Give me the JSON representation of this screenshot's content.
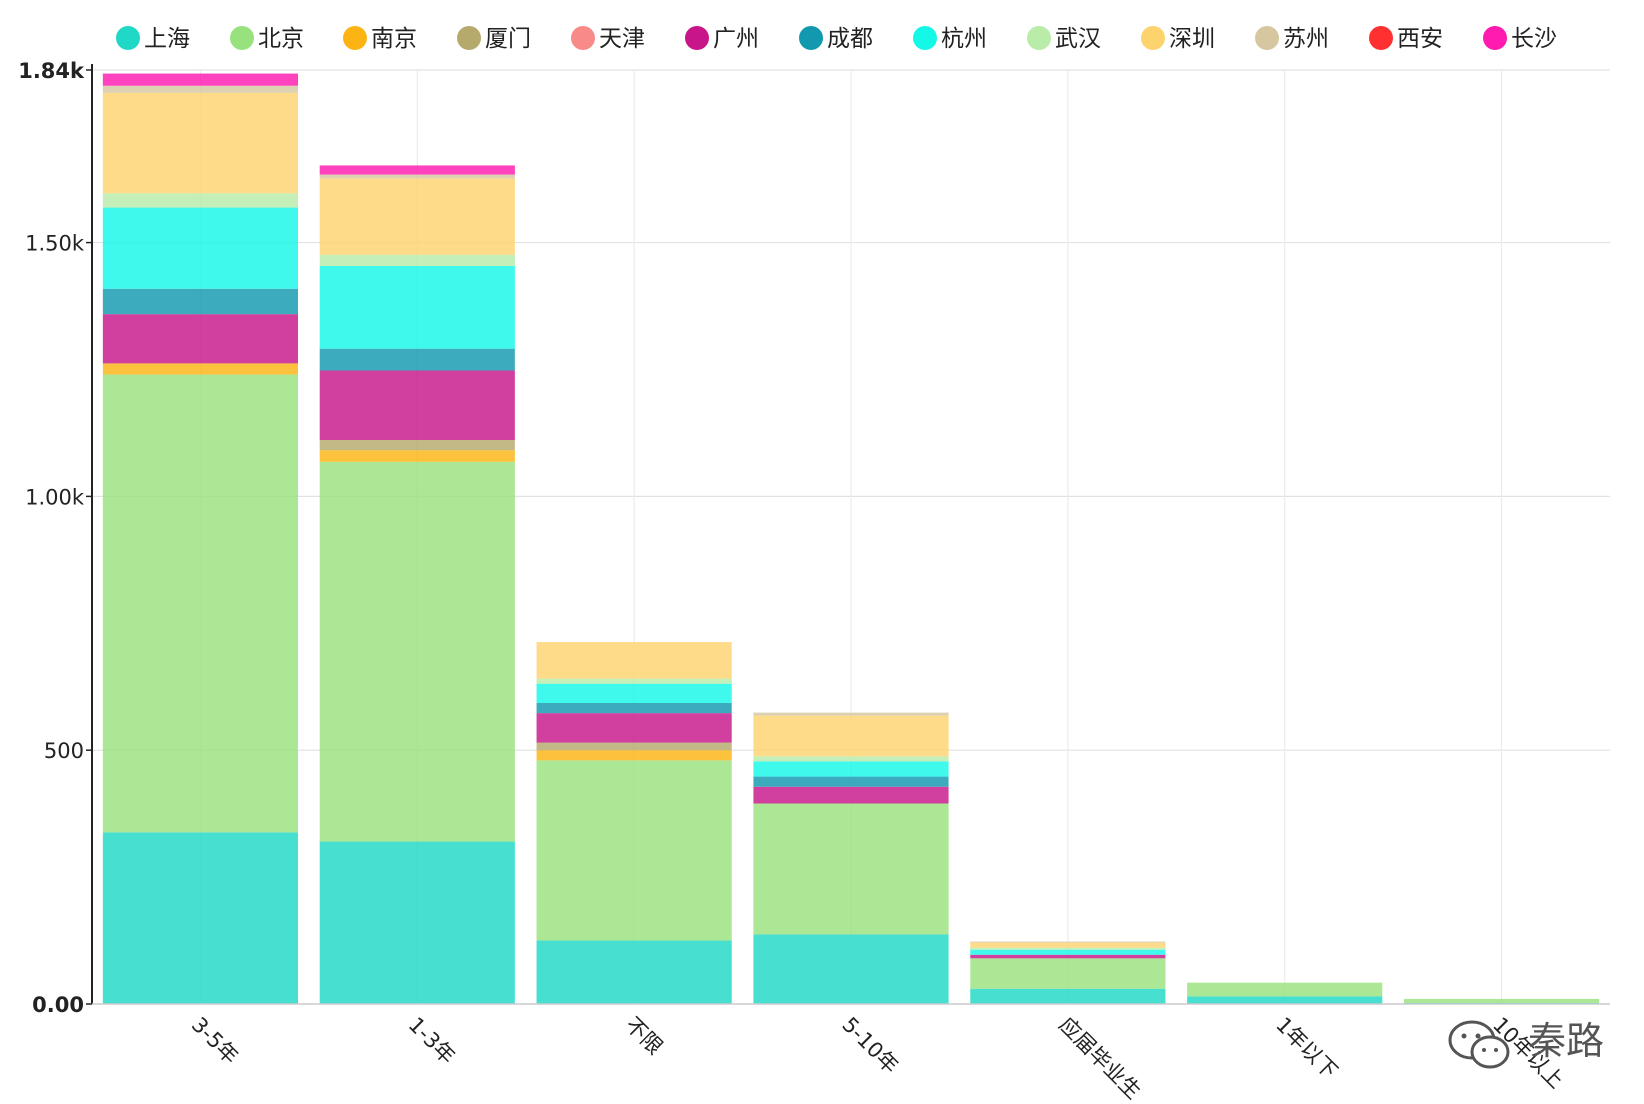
{
  "chart_data": {
    "type": "bar",
    "stacked": true,
    "title": "",
    "xlabel": "",
    "ylabel": "",
    "ylim": [
      0,
      1840
    ],
    "grid": true,
    "legend": "top",
    "yticks": [
      {
        "value": 0,
        "label": "0.00",
        "bold": true
      },
      {
        "value": 500,
        "label": "500",
        "bold": false
      },
      {
        "value": 1000,
        "label": "1.00k",
        "bold": false
      },
      {
        "value": 1500,
        "label": "1.50k",
        "bold": false
      },
      {
        "value": 1840,
        "label": "1.84k",
        "bold": true
      }
    ],
    "categories": [
      "3-5年",
      "1-3年",
      "不限",
      "5-10年",
      "应届毕业生",
      "1年以下",
      "10年以上"
    ],
    "series": [
      {
        "name": "上海",
        "color": "#1fd8c6",
        "values": [
          338,
          320,
          125,
          137,
          30,
          15,
          2
        ]
      },
      {
        "name": "北京",
        "color": "#98e27d",
        "values": [
          902,
          748,
          355,
          258,
          60,
          27,
          8
        ]
      },
      {
        "name": "南京",
        "color": "#fbb414",
        "values": [
          22,
          23,
          20,
          0,
          0,
          0,
          0
        ]
      },
      {
        "name": "厦门",
        "color": "#b5a96b",
        "values": [
          0,
          20,
          15,
          0,
          0,
          0,
          0
        ]
      },
      {
        "name": "天津",
        "color": "#f98a8a",
        "values": [
          0,
          0,
          0,
          0,
          0,
          0,
          0
        ]
      },
      {
        "name": "广州",
        "color": "#c8168a",
        "values": [
          97,
          137,
          58,
          33,
          7,
          0,
          0
        ]
      },
      {
        "name": "成都",
        "color": "#1299b0",
        "values": [
          50,
          43,
          20,
          20,
          0,
          0,
          0
        ]
      },
      {
        "name": "杭州",
        "color": "#14f8e8",
        "values": [
          160,
          163,
          38,
          30,
          10,
          0,
          0
        ]
      },
      {
        "name": "武汉",
        "color": "#b8eca8",
        "values": [
          28,
          22,
          10,
          10,
          4,
          0,
          0
        ]
      },
      {
        "name": "深圳",
        "color": "#fdd36e",
        "values": [
          198,
          150,
          72,
          80,
          10,
          0,
          0
        ]
      },
      {
        "name": "苏州",
        "color": "#d6c7a0",
        "values": [
          14,
          8,
          0,
          6,
          2,
          0,
          0
        ]
      },
      {
        "name": "西安",
        "color": "#ff3030",
        "values": [
          0,
          0,
          0,
          0,
          0,
          0,
          0
        ]
      },
      {
        "name": "长沙",
        "color": "#ff1ab0",
        "values": [
          24,
          18,
          0,
          0,
          0,
          0,
          0
        ]
      }
    ]
  },
  "watermark": {
    "text": "秦路",
    "icon": "wechat-icon"
  }
}
